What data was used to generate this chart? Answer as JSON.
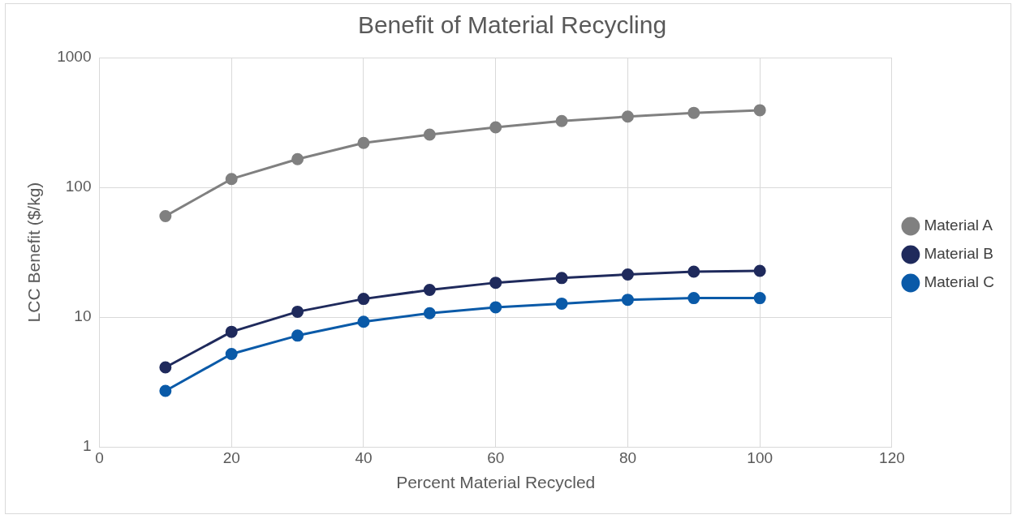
{
  "chart_data": {
    "type": "line",
    "title": "Benefit of Material Recycling",
    "xlabel": "Percent Material Recycled",
    "ylabel": "LCC Benefit ($/kg)",
    "x": [
      10,
      20,
      30,
      40,
      50,
      60,
      70,
      80,
      90,
      100
    ],
    "series": [
      {
        "name": "Material A",
        "color": "#808080",
        "values": [
          60,
          116,
          165,
          220,
          255,
          290,
          324,
          351,
          375,
          393
        ]
      },
      {
        "name": "Material B",
        "color": "#1f2a5c",
        "values": [
          4.1,
          7.7,
          11,
          13.8,
          16.2,
          18.4,
          20,
          21.3,
          22.4,
          22.7
        ]
      },
      {
        "name": "Material C",
        "color": "#0a5aa8",
        "values": [
          2.7,
          5.2,
          7.2,
          9.2,
          10.7,
          11.9,
          12.7,
          13.6,
          14,
          14
        ]
      }
    ],
    "xlim": [
      0,
      120
    ],
    "xticks": [
      0,
      20,
      40,
      60,
      80,
      100,
      120
    ],
    "ylim": [
      1,
      1000
    ],
    "yticks": [
      1,
      10,
      100,
      1000
    ],
    "log": "y",
    "grid": true,
    "legend": "right",
    "marker": "circle",
    "line_style": "solid"
  }
}
